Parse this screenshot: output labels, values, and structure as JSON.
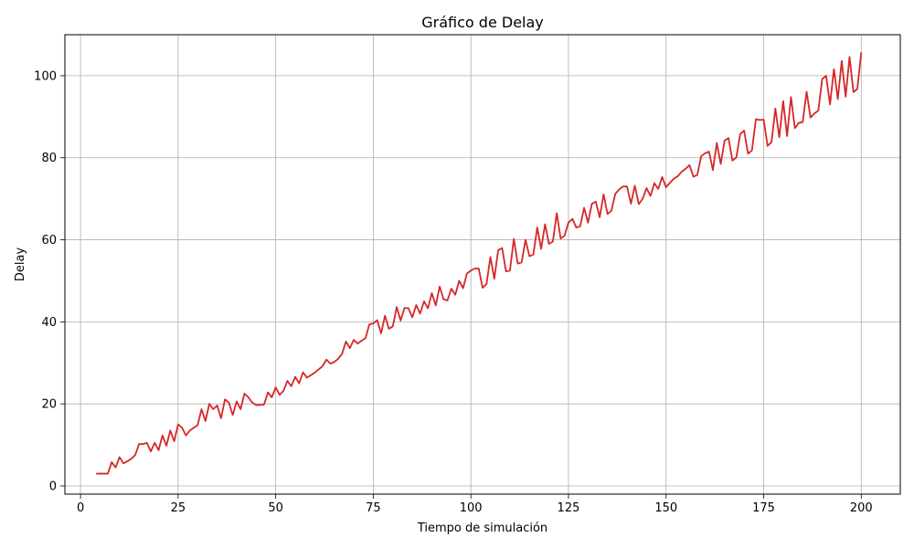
{
  "chart_data": {
    "type": "line",
    "title": "Gráfico de Delay",
    "xlabel": "Tiempo de simulación",
    "ylabel": "Delay",
    "xlim": [
      -4,
      210
    ],
    "ylim": [
      -2,
      110
    ],
    "xticks": [
      0,
      25,
      50,
      75,
      100,
      125,
      150,
      175,
      200
    ],
    "yticks": [
      0,
      20,
      40,
      60,
      80,
      100
    ],
    "grid": true,
    "series": [
      {
        "color": "#d62728",
        "x": [
          4,
          7,
          8,
          9,
          10,
          11,
          12,
          13,
          14,
          15,
          16,
          17,
          18,
          19,
          20,
          21,
          22,
          23,
          24,
          25,
          26,
          27,
          28,
          30,
          31,
          32,
          33,
          34,
          35,
          36,
          37,
          38,
          39,
          40,
          41,
          42,
          43,
          44,
          45,
          47,
          48,
          49,
          50,
          51,
          52,
          53,
          54,
          55,
          56,
          57,
          58,
          60,
          62,
          63,
          64,
          65,
          66,
          67,
          68,
          69,
          70,
          71,
          72,
          73,
          74,
          75,
          76,
          77,
          78,
          79,
          80,
          81,
          82,
          83,
          84,
          85,
          86,
          87,
          88,
          89,
          90,
          91,
          92,
          93,
          94,
          95,
          96,
          97,
          98,
          99,
          100,
          101,
          102,
          103,
          104,
          105,
          106,
          107,
          108,
          109,
          110,
          111,
          112,
          113,
          114,
          115,
          116,
          117,
          118,
          119,
          120,
          121,
          122,
          123,
          124,
          125,
          126,
          127,
          128,
          129,
          130,
          131,
          132,
          133,
          134,
          135,
          136,
          137,
          138,
          139,
          140,
          141,
          142,
          143,
          144,
          145,
          146,
          147,
          148,
          149,
          150,
          151,
          152,
          153,
          154,
          155,
          156,
          157,
          158,
          159,
          160,
          161,
          162,
          163,
          164,
          165,
          166,
          167,
          168,
          169,
          170,
          171,
          172,
          173,
          174,
          175,
          176,
          177,
          178,
          179,
          180,
          181,
          182,
          183,
          184,
          185,
          186,
          187,
          188,
          189,
          190,
          191,
          192,
          193,
          194,
          195,
          196,
          197,
          198,
          199,
          200
        ],
        "y": [
          3,
          3,
          5.8,
          4.5,
          7,
          5.5,
          6,
          6.6,
          7.5,
          10.2,
          10.2,
          10.5,
          8.4,
          10.5,
          8.7,
          12.3,
          9.8,
          13.5,
          10.9,
          15,
          14.2,
          12.3,
          13.5,
          14.8,
          18.7,
          15.8,
          20,
          18.7,
          19.6,
          16.5,
          21.1,
          20.3,
          17.3,
          20.6,
          18.7,
          22.5,
          21.6,
          20.3,
          19.7,
          19.8,
          22.8,
          21.6,
          24,
          22.2,
          23.2,
          25.6,
          24.3,
          26.6,
          25,
          27.7,
          26.4,
          27.6,
          29.2,
          30.8,
          29.8,
          30.2,
          31,
          32.2,
          35.2,
          33.6,
          35.6,
          34.7,
          35.4,
          36,
          39.4,
          39.6,
          40.4,
          37.2,
          41.5,
          38.3,
          38.9,
          43.6,
          40.3,
          43.4,
          43.3,
          41.1,
          44.1,
          42,
          45,
          43.3,
          47,
          44,
          48.6,
          45.5,
          45.2,
          48.1,
          46.6,
          50,
          48.2,
          51.8,
          52.5,
          53,
          53,
          48.3,
          49.2,
          55.8,
          50.5,
          57.5,
          58,
          52.3,
          52.5,
          60.2,
          54.2,
          54.5,
          60,
          56,
          56.4,
          63,
          57.8,
          63.8,
          59,
          59.6,
          66.5,
          60.3,
          61,
          64.2,
          65.1,
          63,
          63.3,
          67.8,
          64.2,
          68.8,
          69.3,
          65.5,
          71.1,
          66.3,
          67.1,
          71.2,
          72.3,
          73,
          73,
          68.8,
          73.2,
          68.7,
          70,
          72.6,
          70.7,
          73.8,
          72.4,
          75.3,
          72.8,
          73.9,
          74.9,
          75.5,
          76.6,
          77.3,
          78.2,
          75.4,
          75.8,
          80.4,
          81.1,
          81.5,
          77,
          83.6,
          78.5,
          84.2,
          84.8,
          79.3,
          80.1,
          85.8,
          86.6,
          81,
          81.8,
          89.4,
          89.2,
          89.3,
          82.9,
          83.8,
          92,
          85,
          93.8,
          85.3,
          94.8,
          87.2,
          88.5,
          88.7,
          96.1,
          89.8,
          90.8,
          91.5,
          99.2,
          100,
          93,
          101.6,
          94.3,
          103.6,
          94.9,
          104.6,
          96,
          96.8,
          105.7
        ]
      }
    ]
  }
}
